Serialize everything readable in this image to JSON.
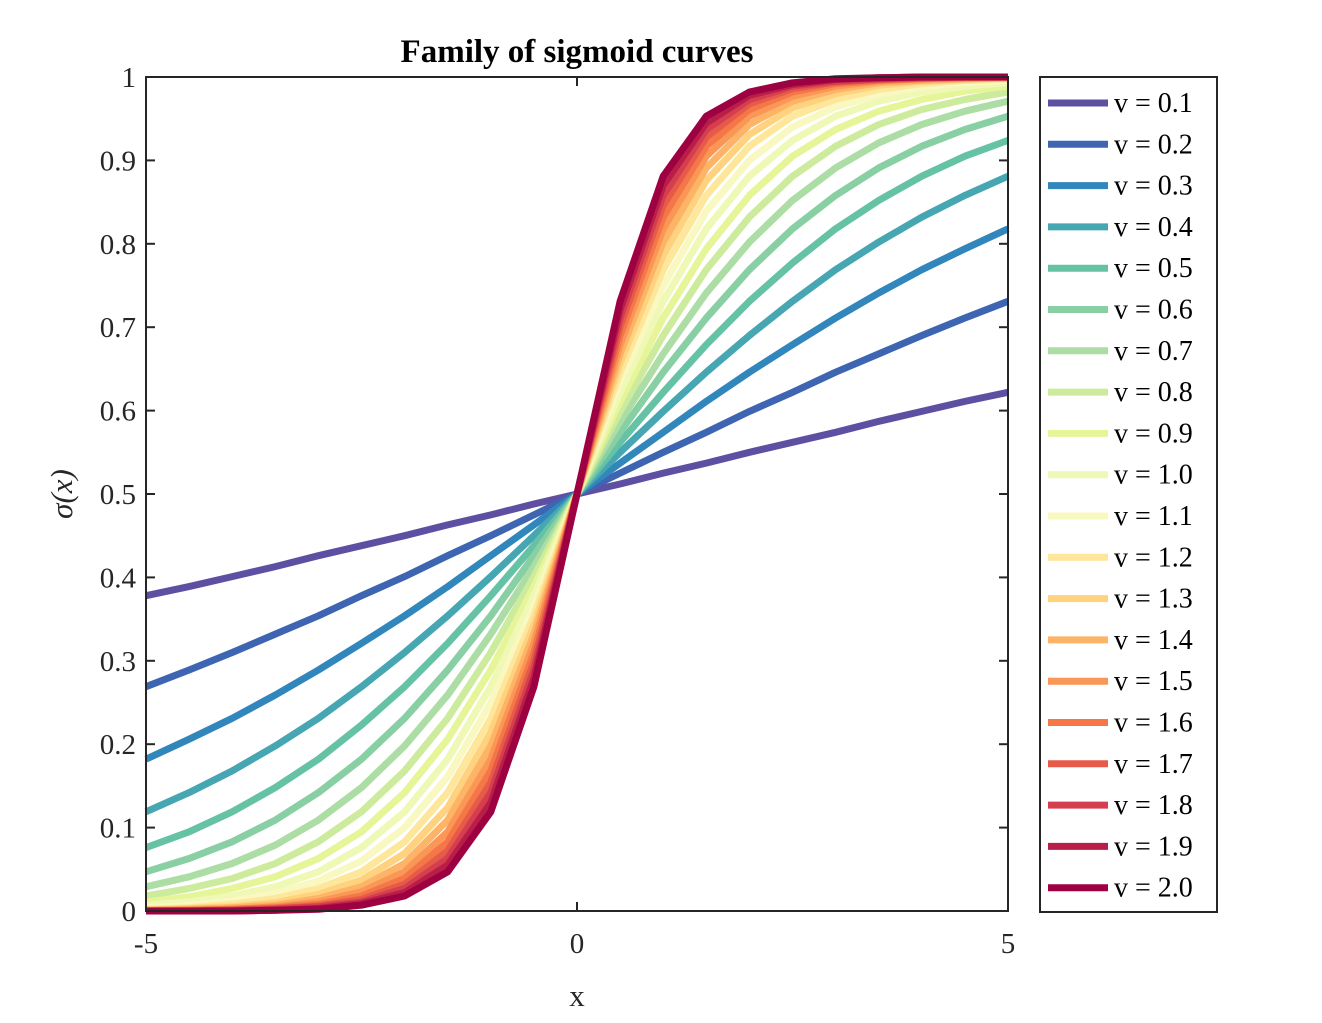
{
  "chart_data": {
    "type": "line",
    "title": "Family of sigmoid curves",
    "xlabel": "x",
    "ylabel": "σ(x)",
    "xlim": [
      -5,
      5
    ],
    "ylim": [
      0,
      1
    ],
    "xticks": [
      {
        "value": -5,
        "label": "-5"
      },
      {
        "value": 0,
        "label": "0"
      },
      {
        "value": 5,
        "label": "5"
      }
    ],
    "yticks": [
      {
        "value": 0,
        "label": "0"
      },
      {
        "value": 0.1,
        "label": "0.1"
      },
      {
        "value": 0.2,
        "label": "0.2"
      },
      {
        "value": 0.3,
        "label": "0.3"
      },
      {
        "value": 0.4,
        "label": "0.4"
      },
      {
        "value": 0.5,
        "label": "0.5"
      },
      {
        "value": 0.6,
        "label": "0.6"
      },
      {
        "value": 0.7,
        "label": "0.7"
      },
      {
        "value": 0.8,
        "label": "0.8"
      },
      {
        "value": 0.9,
        "label": "0.9"
      },
      {
        "value": 1,
        "label": "1"
      }
    ],
    "grid": false,
    "legend_position": "outside-right",
    "x": [
      -5,
      -4.5,
      -4,
      -3.5,
      -3,
      -2.5,
      -2,
      -1.5,
      -1,
      -0.5,
      0,
      0.5,
      1,
      1.5,
      2,
      2.5,
      3,
      3.5,
      4,
      4.5,
      5
    ],
    "series": [
      {
        "name": "v = 0.1",
        "color": "#5e4fa2",
        "values": [
          0.378,
          0.389,
          0.401,
          0.413,
          0.426,
          0.438,
          0.45,
          0.463,
          0.475,
          0.488,
          0.5,
          0.512,
          0.525,
          0.537,
          0.55,
          0.562,
          0.574,
          0.587,
          0.599,
          0.611,
          0.622
        ]
      },
      {
        "name": "v = 0.2",
        "color": "#3d65b1",
        "values": [
          0.269,
          0.289,
          0.31,
          0.332,
          0.354,
          0.378,
          0.401,
          0.426,
          0.45,
          0.475,
          0.5,
          0.525,
          0.55,
          0.574,
          0.599,
          0.622,
          0.646,
          0.668,
          0.69,
          0.711,
          0.731
        ]
      },
      {
        "name": "v = 0.3",
        "color": "#3186bc",
        "values": [
          0.182,
          0.206,
          0.231,
          0.259,
          0.289,
          0.321,
          0.354,
          0.389,
          0.426,
          0.463,
          0.5,
          0.537,
          0.574,
          0.611,
          0.646,
          0.679,
          0.711,
          0.741,
          0.769,
          0.794,
          0.818
        ]
      },
      {
        "name": "v = 0.4",
        "color": "#46a6b2",
        "values": [
          0.119,
          0.142,
          0.168,
          0.198,
          0.231,
          0.269,
          0.31,
          0.354,
          0.401,
          0.45,
          0.5,
          0.55,
          0.599,
          0.646,
          0.69,
          0.731,
          0.769,
          0.802,
          0.832,
          0.858,
          0.881
        ]
      },
      {
        "name": "v = 0.5",
        "color": "#66c2a5",
        "values": [
          0.076,
          0.095,
          0.119,
          0.148,
          0.182,
          0.223,
          0.269,
          0.321,
          0.378,
          0.438,
          0.5,
          0.562,
          0.622,
          0.679,
          0.731,
          0.777,
          0.818,
          0.852,
          0.881,
          0.905,
          0.924
        ]
      },
      {
        "name": "v = 0.6",
        "color": "#88cfa4",
        "values": [
          0.047,
          0.063,
          0.083,
          0.109,
          0.142,
          0.182,
          0.231,
          0.289,
          0.354,
          0.426,
          0.5,
          0.574,
          0.646,
          0.711,
          0.769,
          0.818,
          0.858,
          0.891,
          0.917,
          0.937,
          0.953
        ]
      },
      {
        "name": "v = 0.7",
        "color": "#abdda4",
        "values": [
          0.029,
          0.041,
          0.057,
          0.079,
          0.109,
          0.148,
          0.198,
          0.259,
          0.332,
          0.413,
          0.5,
          0.587,
          0.668,
          0.741,
          0.802,
          0.852,
          0.891,
          0.921,
          0.943,
          0.959,
          0.971
        ]
      },
      {
        "name": "v = 0.8",
        "color": "#cdeb9d",
        "values": [
          0.018,
          0.027,
          0.039,
          0.057,
          0.083,
          0.119,
          0.168,
          0.231,
          0.31,
          0.401,
          0.5,
          0.599,
          0.69,
          0.769,
          0.832,
          0.881,
          0.917,
          0.943,
          0.961,
          0.973,
          0.982
        ]
      },
      {
        "name": "v = 0.9",
        "color": "#e6f598",
        "values": [
          0.011,
          0.017,
          0.027,
          0.041,
          0.063,
          0.095,
          0.142,
          0.206,
          0.289,
          0.389,
          0.5,
          0.611,
          0.711,
          0.794,
          0.858,
          0.905,
          0.937,
          0.959,
          0.973,
          0.983,
          0.989
        ]
      },
      {
        "name": "v = 1.0",
        "color": "#eff8b4",
        "values": [
          0.007,
          0.011,
          0.018,
          0.029,
          0.047,
          0.076,
          0.119,
          0.182,
          0.269,
          0.378,
          0.5,
          0.622,
          0.731,
          0.818,
          0.881,
          0.924,
          0.953,
          0.971,
          0.982,
          0.989,
          0.993
        ]
      },
      {
        "name": "v = 1.1",
        "color": "#f8f8c0",
        "values": [
          0.004,
          0.007,
          0.012,
          0.021,
          0.036,
          0.06,
          0.1,
          0.161,
          0.25,
          0.366,
          0.5,
          0.634,
          0.75,
          0.839,
          0.9,
          0.94,
          0.964,
          0.979,
          0.988,
          0.993,
          0.996
        ]
      },
      {
        "name": "v = 1.2",
        "color": "#fee79a",
        "values": [
          0.002,
          0.004,
          0.008,
          0.015,
          0.027,
          0.047,
          0.083,
          0.142,
          0.231,
          0.354,
          0.5,
          0.646,
          0.769,
          0.858,
          0.917,
          0.953,
          0.973,
          0.985,
          0.992,
          0.996,
          0.998
        ]
      },
      {
        "name": "v = 1.3",
        "color": "#fed27f",
        "values": [
          0.001,
          0.003,
          0.005,
          0.01,
          0.02,
          0.037,
          0.069,
          0.124,
          0.214,
          0.343,
          0.5,
          0.657,
          0.786,
          0.876,
          0.931,
          0.963,
          0.98,
          0.99,
          0.995,
          0.997,
          0.999
        ]
      },
      {
        "name": "v = 1.4",
        "color": "#fdb466",
        "values": [
          0.001,
          0.002,
          0.004,
          0.007,
          0.015,
          0.029,
          0.057,
          0.109,
          0.198,
          0.332,
          0.5,
          0.668,
          0.802,
          0.891,
          0.943,
          0.971,
          0.985,
          0.993,
          0.996,
          0.998,
          0.999
        ]
      },
      {
        "name": "v = 1.5",
        "color": "#fa9656",
        "values": [
          0.001,
          0.001,
          0.002,
          0.005,
          0.011,
          0.023,
          0.047,
          0.095,
          0.182,
          0.321,
          0.5,
          0.679,
          0.818,
          0.905,
          0.953,
          0.977,
          0.989,
          0.995,
          0.998,
          0.999,
          0.999
        ]
      },
      {
        "name": "v = 1.6",
        "color": "#f57748",
        "values": [
          0.0,
          0.001,
          0.002,
          0.004,
          0.008,
          0.018,
          0.039,
          0.083,
          0.168,
          0.31,
          0.5,
          0.69,
          0.832,
          0.917,
          0.961,
          0.982,
          0.992,
          0.996,
          0.998,
          0.999,
          1.0
        ]
      },
      {
        "name": "v = 1.7",
        "color": "#e55a49",
        "values": [
          0.0,
          0.0,
          0.001,
          0.003,
          0.006,
          0.014,
          0.032,
          0.072,
          0.154,
          0.299,
          0.5,
          0.701,
          0.846,
          0.928,
          0.968,
          0.986,
          0.994,
          0.997,
          0.999,
          1.0,
          1.0
        ]
      },
      {
        "name": "v = 1.8",
        "color": "#d53e4f",
        "values": [
          0.0,
          0.0,
          0.001,
          0.002,
          0.005,
          0.011,
          0.027,
          0.063,
          0.142,
          0.289,
          0.5,
          0.711,
          0.858,
          0.937,
          0.973,
          0.989,
          0.995,
          0.998,
          0.999,
          1.0,
          1.0
        ]
      },
      {
        "name": "v = 1.9",
        "color": "#b81e48",
        "values": [
          0.0,
          0.0,
          0.0,
          0.001,
          0.003,
          0.009,
          0.022,
          0.055,
          0.13,
          0.279,
          0.5,
          0.721,
          0.87,
          0.945,
          0.978,
          0.991,
          0.997,
          0.999,
          1.0,
          1.0,
          1.0
        ]
      },
      {
        "name": "v = 2.0",
        "color": "#9e0142",
        "values": [
          0.0,
          0.0,
          0.0,
          0.001,
          0.002,
          0.007,
          0.018,
          0.047,
          0.119,
          0.269,
          0.5,
          0.731,
          0.881,
          0.953,
          0.982,
          0.993,
          0.998,
          0.999,
          1.0,
          1.0,
          1.0
        ]
      }
    ]
  }
}
